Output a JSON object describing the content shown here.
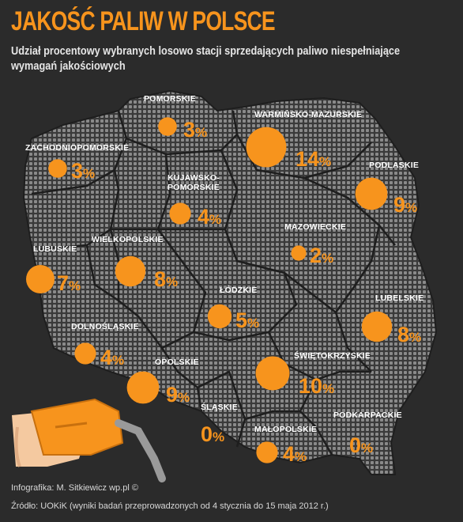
{
  "header": {
    "title": "JAKOŚĆ PALIW W POLSCE",
    "subtitle": "Udział procentowy wybranych losowo stacji sprzedających paliwo niespełniające wymagań jakościowych"
  },
  "colors": {
    "background": "#2b2b2b",
    "accent": "#f7941d",
    "map_dots": "#8a8a8a",
    "borders": "#1e1e1e"
  },
  "regions": [
    {
      "id": "pomorskie",
      "name_lines": [
        "POMORSKIE"
      ],
      "value": 3,
      "label": "3%"
    },
    {
      "id": "warminsko-mazurskie",
      "name_lines": [
        "WARMIŃSKO-MAZURSKIE"
      ],
      "value": 14,
      "label": "14%"
    },
    {
      "id": "zachodniopomorskie",
      "name_lines": [
        "ZACHODNIOPOMORSKIE"
      ],
      "value": 3,
      "label": "3%"
    },
    {
      "id": "kujawsko-pomorskie",
      "name_lines": [
        "KUJAWSKO-",
        "POMORSKIE"
      ],
      "value": 4,
      "label": "4%"
    },
    {
      "id": "podlaskie",
      "name_lines": [
        "PODLASKIE"
      ],
      "value": 9,
      "label": "9%"
    },
    {
      "id": "mazowieckie",
      "name_lines": [
        "MAZOWIECKIE"
      ],
      "value": 2,
      "label": "2%"
    },
    {
      "id": "lubuskie",
      "name_lines": [
        "LUBUSKIE"
      ],
      "value": 7,
      "label": "7%"
    },
    {
      "id": "wielkopolskie",
      "name_lines": [
        "WIELKOPOLSKIE"
      ],
      "value": 8,
      "label": "8%"
    },
    {
      "id": "lodzkie",
      "name_lines": [
        "ŁÓDZKIE"
      ],
      "value": 5,
      "label": "5%"
    },
    {
      "id": "lubelskie",
      "name_lines": [
        "LUBELSKIE"
      ],
      "value": 8,
      "label": "8%"
    },
    {
      "id": "dolnoslaskie",
      "name_lines": [
        "DOLNOŚLĄSKIE"
      ],
      "value": 4,
      "label": "4%"
    },
    {
      "id": "opolskie",
      "name_lines": [
        "OPOLSKIE"
      ],
      "value": 9,
      "label": "9%"
    },
    {
      "id": "swietokrzyskie",
      "name_lines": [
        "ŚWIĘTOKRZYSKIE"
      ],
      "value": 10,
      "label": "10%"
    },
    {
      "id": "slaskie",
      "name_lines": [
        "ŚLĄSKIE"
      ],
      "value": 0,
      "label": "0%"
    },
    {
      "id": "malopolskie",
      "name_lines": [
        "MAŁOPOLSKIE"
      ],
      "value": 4,
      "label": "4%"
    },
    {
      "id": "podkarpackie",
      "name_lines": [
        "PODKARPACKIE"
      ],
      "value": 0,
      "label": "0%"
    }
  ],
  "footer": {
    "credit": "Infografika: M. Sitkiewicz wp.pl ©",
    "source": "Źródło: UOKiK (wyniki badań przeprowadzonych od 4 stycznia do 15 maja 2012 r.)"
  }
}
